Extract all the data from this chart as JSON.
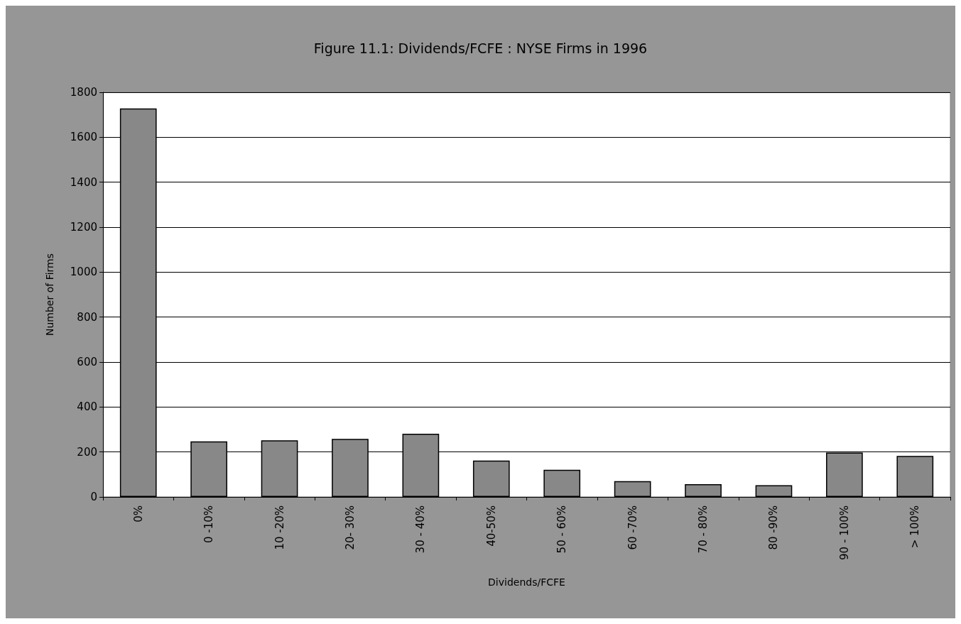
{
  "chart_data": {
    "type": "bar",
    "title": "Figure 11.1: Dividends/FCFE : NYSE Firms in 1996",
    "xlabel": "Dividends/FCFE",
    "ylabel": "Number of Firms",
    "categories": [
      "0%",
      "0 -10%",
      "10 -20%",
      "20- 30%",
      "30 - 40%",
      "40-50%",
      "50 - 60%",
      "60 -70%",
      "70 - 80%",
      "80 -90%",
      "90 - 100%",
      "> 100%"
    ],
    "values": [
      1728,
      247,
      252,
      258,
      281,
      162,
      121,
      70,
      57,
      52,
      197,
      182
    ],
    "color": "#888888",
    "ylim": [
      0,
      1800
    ],
    "yticks": [
      0,
      200,
      400,
      600,
      800,
      1000,
      1200,
      1400,
      1600,
      1800
    ],
    "grid": "y"
  }
}
